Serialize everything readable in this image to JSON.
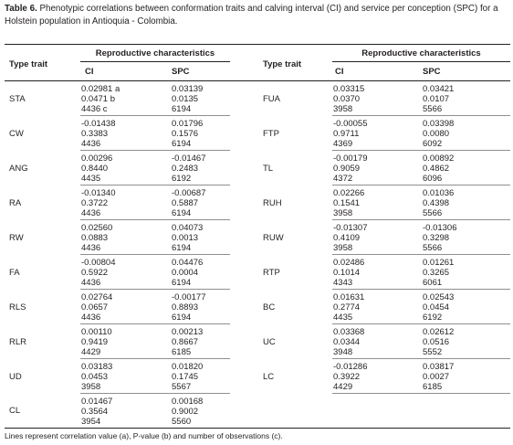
{
  "table": {
    "label": "Table 6.",
    "caption": "Phenotypic correlations between conformation traits and calving interval (CI) and service per conception (SPC) for a Holstein population in Antioquia - Colombia.",
    "headers": {
      "type_trait": "Type trait",
      "group": "Reproductive characteristics",
      "ci": "CI",
      "spc": "SPC"
    },
    "left_rows": [
      {
        "trait": "STA",
        "ci": [
          "0.02981 a",
          "0.0471 b",
          "4436 c"
        ],
        "spc": [
          "0.03139",
          "0.0135",
          "6194"
        ]
      },
      {
        "trait": "CW",
        "ci": [
          "-0.01438",
          "0.3383",
          "4436"
        ],
        "spc": [
          "0.01796",
          "0.1576",
          "6194"
        ]
      },
      {
        "trait": "ANG",
        "ci": [
          "0.00296",
          "0.8440",
          "4435"
        ],
        "spc": [
          "-0.01467",
          "0.2483",
          "6192"
        ]
      },
      {
        "trait": "RA",
        "ci": [
          "-0.01340",
          "0.3722",
          "4436"
        ],
        "spc": [
          "-0.00687",
          "0.5887",
          "6194"
        ]
      },
      {
        "trait": "RW",
        "ci": [
          "0.02560",
          "0.0883",
          "4436"
        ],
        "spc": [
          "0.04073",
          "0.0013",
          "6194"
        ]
      },
      {
        "trait": "FA",
        "ci": [
          "-0.00804",
          "0.5922",
          "4436"
        ],
        "spc": [
          "0.04476",
          "0.0004",
          "6194"
        ]
      },
      {
        "trait": "RLS",
        "ci": [
          "0.02764",
          "0.0657",
          "4436"
        ],
        "spc": [
          "-0.00177",
          "0.8893",
          "6194"
        ]
      },
      {
        "trait": "RLR",
        "ci": [
          "0.00110",
          "0.9419",
          "4429"
        ],
        "spc": [
          "0.00213",
          "0.8667",
          "6185"
        ]
      },
      {
        "trait": "UD",
        "ci": [
          "0.03183",
          "0.0453",
          "3958"
        ],
        "spc": [
          "0.01820",
          "0.1745",
          "5567"
        ]
      },
      {
        "trait": "CL",
        "ci": [
          "0.01467",
          "0.3564",
          "3954"
        ],
        "spc": [
          "0.00168",
          "0.9002",
          "5560"
        ]
      }
    ],
    "right_rows": [
      {
        "trait": "FUA",
        "ci": [
          "0.03315",
          "0.0370",
          "3958"
        ],
        "spc": [
          "0.03421",
          "0.0107",
          "5566"
        ]
      },
      {
        "trait": "FTP",
        "ci": [
          "-0.00055",
          "0.9711",
          "4369"
        ],
        "spc": [
          "0.03398",
          "0.0080",
          "6092"
        ]
      },
      {
        "trait": "TL",
        "ci": [
          "-0.00179",
          "0.9059",
          "4372"
        ],
        "spc": [
          "0.00892",
          "0.4862",
          "6096"
        ]
      },
      {
        "trait": "RUH",
        "ci": [
          "0.02266",
          "0.1541",
          "3958"
        ],
        "spc": [
          "0.01036",
          "0.4398",
          "5566"
        ]
      },
      {
        "trait": "RUW",
        "ci": [
          "-0.01307",
          "0.4109",
          "3958"
        ],
        "spc": [
          "-0.01306",
          "0.3298",
          "5566"
        ]
      },
      {
        "trait": "RTP",
        "ci": [
          "0.02486",
          "0.1014",
          "4343"
        ],
        "spc": [
          "0.01261",
          "0.3265",
          "6061"
        ]
      },
      {
        "trait": "BC",
        "ci": [
          "0.01631",
          "0.2774",
          "4435"
        ],
        "spc": [
          "0.02543",
          "0.0454",
          "6192"
        ]
      },
      {
        "trait": "UC",
        "ci": [
          "0.03368",
          "0.0344",
          "3948"
        ],
        "spc": [
          "0.02612",
          "0.0516",
          "5552"
        ]
      },
      {
        "trait": "LC",
        "ci": [
          "-0.01286",
          "0.3922",
          "4429"
        ],
        "spc": [
          "0.03817",
          "0.0027",
          "6185"
        ]
      }
    ],
    "footnote": "Lines represent correlation value (a), P-value (b) and number of observations (c)."
  }
}
